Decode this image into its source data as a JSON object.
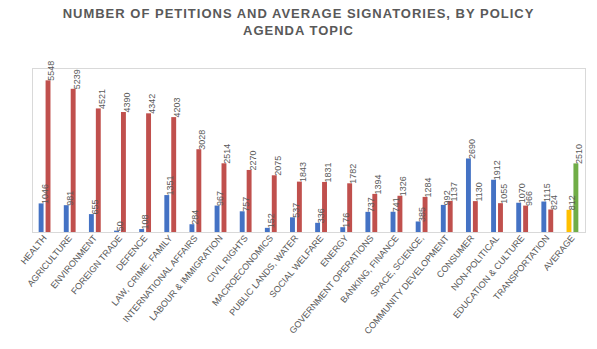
{
  "chart_data": {
    "type": "bar",
    "title": "NUMBER OF PETITIONS AND AVERAGE SIGNATORIES, BY POLICY AGENDA TOPIC",
    "categories": [
      "HEALTH",
      "AGRICULTURE",
      "ENVIRONMENT",
      "FOREIGN TRADE",
      "DEFENCE",
      "LAW, CRIME, FAMILY",
      "INTERNATIONAL AFFAIRS",
      "LABOUR & IMMIGRATION",
      "CIVIL RIGHTS",
      "MACROECONOMICS",
      "PUBLIC LANDS, WATER",
      "SOCIAL WELFARE",
      "ENERGY",
      "GOVERNMENT OPERATIONS",
      "BANKING, FINANCE",
      "SPACE, SCIENCE,",
      "COMMUNITY DEVELOPMENT",
      "CONSUMER",
      "NON-POLITICAL",
      "EDUCATION & CULTURE",
      "TRANSPORTATION",
      "AVERAGE"
    ],
    "series": [
      {
        "colors": [
          "#4472c4",
          "#4472c4",
          "#4472c4",
          "#4472c4",
          "#4472c4",
          "#4472c4",
          "#4472c4",
          "#4472c4",
          "#4472c4",
          "#4472c4",
          "#4472c4",
          "#4472c4",
          "#4472c4",
          "#4472c4",
          "#4472c4",
          "#4472c4",
          "#4472c4",
          "#4472c4",
          "#4472c4",
          "#4472c4",
          "#4472c4",
          "#ffc000"
        ],
        "values": [
          1046,
          981,
          655,
          50,
          108,
          1351,
          284,
          967,
          757,
          152,
          537,
          336,
          176,
          737,
          741,
          385,
          992,
          2690,
          1912,
          1070,
          1115,
          812
        ]
      },
      {
        "colors": [
          "#c0504d",
          "#c0504d",
          "#c0504d",
          "#c0504d",
          "#c0504d",
          "#c0504d",
          "#c0504d",
          "#c0504d",
          "#c0504d",
          "#c0504d",
          "#c0504d",
          "#c0504d",
          "#c0504d",
          "#c0504d",
          "#c0504d",
          "#c0504d",
          "#c0504d",
          "#c0504d",
          "#c0504d",
          "#c0504d",
          "#c0504d",
          "#70ad47"
        ],
        "values": [
          5548,
          5239,
          4521,
          4390,
          4342,
          4203,
          3028,
          2514,
          2270,
          2075,
          1843,
          1831,
          1782,
          1394,
          1326,
          1284,
          1137,
          1130,
          1055,
          966,
          824,
          2510
        ]
      }
    ],
    "ylim": [
      0,
      6000
    ],
    "data_labels": true,
    "tick_labels": "x"
  }
}
